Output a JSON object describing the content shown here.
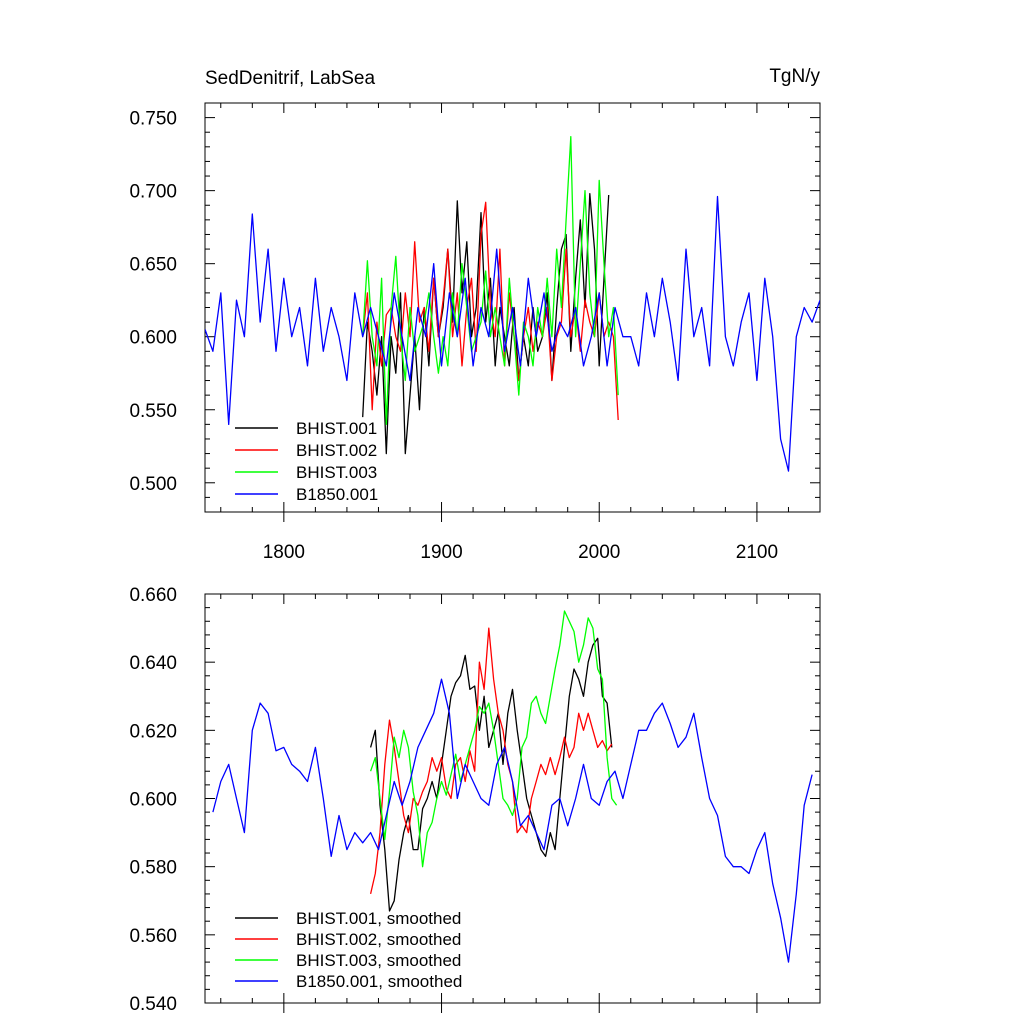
{
  "chart_data": [
    {
      "type": "line",
      "title": "SedDenitrif, LabSea",
      "units": "TgN/y",
      "xlabel": "",
      "ylabel": "",
      "xlim": [
        1750,
        2140
      ],
      "ylim": [
        0.48,
        0.76
      ],
      "x_ticks": [
        1800,
        1900,
        2000,
        2100
      ],
      "x_tick_labels": [
        "1800",
        "1900",
        "2000",
        "2100"
      ],
      "y_ticks": [
        0.5,
        0.55,
        0.6,
        0.65,
        0.7,
        0.75
      ],
      "y_tick_labels": [
        "0.500",
        "0.550",
        "0.600",
        "0.650",
        "0.700",
        "0.750"
      ],
      "grid": false,
      "legend_position": "bottom-left",
      "series": [
        {
          "name": "BHIST.001",
          "color": "#000000",
          "x": [
            1850,
            1853,
            1856,
            1859,
            1862,
            1865,
            1868,
            1871,
            1874,
            1877,
            1880,
            1883,
            1886,
            1889,
            1892,
            1895,
            1898,
            1901,
            1904,
            1907,
            1910,
            1913,
            1916,
            1919,
            1922,
            1925,
            1928,
            1931,
            1934,
            1937,
            1940,
            1943,
            1946,
            1949,
            1952,
            1955,
            1958,
            1961,
            1964,
            1967,
            1970,
            1973,
            1976,
            1979,
            1982,
            1985,
            1988,
            1991,
            1994,
            1997,
            2000,
            2003,
            2006
          ],
          "values": [
            0.545,
            0.61,
            0.59,
            0.56,
            0.6,
            0.52,
            0.6,
            0.575,
            0.63,
            0.52,
            0.56,
            0.6,
            0.55,
            0.62,
            0.58,
            0.64,
            0.6,
            0.62,
            0.66,
            0.61,
            0.693,
            0.63,
            0.665,
            0.6,
            0.62,
            0.685,
            0.61,
            0.64,
            0.58,
            0.62,
            0.6,
            0.58,
            0.62,
            0.57,
            0.6,
            0.58,
            0.62,
            0.59,
            0.6,
            0.63,
            0.57,
            0.62,
            0.66,
            0.67,
            0.59,
            0.64,
            0.68,
            0.62,
            0.698,
            0.66,
            0.58,
            0.64,
            0.697
          ]
        },
        {
          "name": "BHIST.002",
          "color": "#ff0000",
          "x": [
            1850,
            1853,
            1856,
            1859,
            1862,
            1865,
            1868,
            1871,
            1874,
            1877,
            1880,
            1883,
            1886,
            1889,
            1892,
            1895,
            1898,
            1901,
            1904,
            1907,
            1910,
            1913,
            1916,
            1919,
            1922,
            1925,
            1928,
            1931,
            1934,
            1937,
            1940,
            1943,
            1946,
            1949,
            1952,
            1955,
            1958,
            1961,
            1964,
            1967,
            1970,
            1973,
            1976,
            1979,
            1982,
            1985,
            1988,
            1991,
            1994,
            1997,
            2000,
            2003,
            2006,
            2009,
            2012
          ],
          "values": [
            0.6,
            0.63,
            0.55,
            0.61,
            0.58,
            0.615,
            0.62,
            0.6,
            0.59,
            0.63,
            0.6,
            0.665,
            0.61,
            0.62,
            0.59,
            0.64,
            0.6,
            0.625,
            0.66,
            0.6,
            0.63,
            0.58,
            0.62,
            0.64,
            0.59,
            0.67,
            0.692,
            0.62,
            0.6,
            0.66,
            0.58,
            0.63,
            0.6,
            0.57,
            0.6,
            0.62,
            0.59,
            0.61,
            0.6,
            0.62,
            0.57,
            0.6,
            0.61,
            0.66,
            0.6,
            0.62,
            0.59,
            0.625,
            0.61,
            0.6,
            0.63,
            0.6,
            0.61,
            0.6,
            0.543
          ]
        },
        {
          "name": "BHIST.003",
          "color": "#00ff00",
          "x": [
            1850,
            1853,
            1856,
            1859,
            1862,
            1865,
            1868,
            1871,
            1874,
            1877,
            1880,
            1883,
            1886,
            1889,
            1892,
            1895,
            1898,
            1901,
            1904,
            1907,
            1910,
            1913,
            1916,
            1919,
            1922,
            1925,
            1928,
            1931,
            1934,
            1937,
            1940,
            1943,
            1946,
            1949,
            1952,
            1955,
            1958,
            1961,
            1964,
            1967,
            1970,
            1973,
            1976,
            1979,
            1982,
            1985,
            1988,
            1991,
            1994,
            1997,
            2000,
            2003,
            2006,
            2009,
            2012
          ],
          "values": [
            0.6,
            0.652,
            0.6,
            0.58,
            0.64,
            0.54,
            0.62,
            0.655,
            0.6,
            0.57,
            0.62,
            0.59,
            0.6,
            0.61,
            0.63,
            0.6,
            0.575,
            0.6,
            0.58,
            0.63,
            0.6,
            0.65,
            0.62,
            0.59,
            0.6,
            0.61,
            0.645,
            0.6,
            0.62,
            0.6,
            0.58,
            0.64,
            0.6,
            0.56,
            0.61,
            0.6,
            0.58,
            0.62,
            0.6,
            0.64,
            0.6,
            0.66,
            0.62,
            0.68,
            0.737,
            0.6,
            0.65,
            0.7,
            0.63,
            0.6,
            0.707,
            0.65,
            0.6,
            0.62,
            0.56
          ]
        },
        {
          "name": "B1850.001",
          "color": "#0000ff",
          "x": [
            1750,
            1755,
            1760,
            1765,
            1770,
            1775,
            1780,
            1785,
            1790,
            1795,
            1800,
            1805,
            1810,
            1815,
            1820,
            1825,
            1830,
            1835,
            1840,
            1845,
            1850,
            1855,
            1860,
            1865,
            1870,
            1875,
            1880,
            1885,
            1890,
            1895,
            1900,
            1905,
            1910,
            1915,
            1920,
            1925,
            1930,
            1935,
            1940,
            1945,
            1950,
            1955,
            1960,
            1965,
            1970,
            1975,
            1980,
            1985,
            1990,
            1995,
            2000,
            2005,
            2010,
            2015,
            2020,
            2025,
            2030,
            2035,
            2040,
            2045,
            2050,
            2055,
            2060,
            2065,
            2070,
            2075,
            2080,
            2085,
            2090,
            2095,
            2100,
            2105,
            2110,
            2115,
            2120,
            2125,
            2130,
            2135,
            2140
          ],
          "values": [
            0.605,
            0.59,
            0.63,
            0.54,
            0.625,
            0.6,
            0.684,
            0.61,
            0.66,
            0.59,
            0.64,
            0.6,
            0.62,
            0.58,
            0.64,
            0.59,
            0.62,
            0.6,
            0.57,
            0.63,
            0.6,
            0.62,
            0.6,
            0.58,
            0.63,
            0.6,
            0.57,
            0.62,
            0.6,
            0.65,
            0.58,
            0.63,
            0.6,
            0.64,
            0.58,
            0.62,
            0.6,
            0.66,
            0.59,
            0.62,
            0.58,
            0.64,
            0.6,
            0.63,
            0.59,
            0.61,
            0.6,
            0.62,
            0.58,
            0.6,
            0.63,
            0.58,
            0.62,
            0.6,
            0.6,
            0.58,
            0.63,
            0.6,
            0.64,
            0.61,
            0.57,
            0.66,
            0.6,
            0.62,
            0.58,
            0.696,
            0.6,
            0.58,
            0.61,
            0.63,
            0.57,
            0.64,
            0.6,
            0.53,
            0.508,
            0.6,
            0.62,
            0.61,
            0.625
          ]
        }
      ]
    },
    {
      "type": "line",
      "title": "",
      "xlabel": "",
      "ylabel": "",
      "xlim": [
        1750,
        2140
      ],
      "ylim": [
        0.54,
        0.66
      ],
      "x_ticks": [
        1800,
        1900,
        2000,
        2100
      ],
      "x_tick_labels": [],
      "y_ticks": [
        0.54,
        0.56,
        0.58,
        0.6,
        0.62,
        0.64,
        0.66
      ],
      "y_tick_labels": [
        "0.540",
        "0.560",
        "0.580",
        "0.600",
        "0.620",
        "0.640",
        "0.660"
      ],
      "grid": false,
      "legend_position": "bottom-left",
      "series": [
        {
          "name": "BHIST.001, smoothed",
          "color": "#000000",
          "x": [
            1855,
            1858,
            1861,
            1864,
            1867,
            1870,
            1873,
            1876,
            1879,
            1882,
            1885,
            1888,
            1891,
            1894,
            1897,
            1900,
            1903,
            1906,
            1909,
            1912,
            1915,
            1918,
            1921,
            1924,
            1927,
            1930,
            1933,
            1936,
            1939,
            1942,
            1945,
            1948,
            1951,
            1954,
            1957,
            1960,
            1963,
            1966,
            1969,
            1972,
            1975,
            1978,
            1981,
            1984,
            1987,
            1990,
            1993,
            1996,
            1999,
            2002,
            2005,
            2008
          ],
          "values": [
            0.615,
            0.62,
            0.598,
            0.585,
            0.567,
            0.57,
            0.582,
            0.59,
            0.595,
            0.585,
            0.585,
            0.597,
            0.6,
            0.605,
            0.6,
            0.61,
            0.62,
            0.63,
            0.634,
            0.636,
            0.642,
            0.632,
            0.633,
            0.62,
            0.63,
            0.615,
            0.62,
            0.625,
            0.61,
            0.625,
            0.632,
            0.62,
            0.61,
            0.6,
            0.595,
            0.59,
            0.585,
            0.583,
            0.59,
            0.585,
            0.6,
            0.615,
            0.63,
            0.638,
            0.635,
            0.63,
            0.64,
            0.645,
            0.647,
            0.63,
            0.628,
            0.615
          ]
        },
        {
          "name": "BHIST.002, smoothed",
          "color": "#ff0000",
          "x": [
            1855,
            1858,
            1861,
            1864,
            1867,
            1870,
            1873,
            1876,
            1879,
            1882,
            1885,
            1888,
            1891,
            1894,
            1897,
            1900,
            1903,
            1906,
            1909,
            1912,
            1915,
            1918,
            1921,
            1924,
            1927,
            1930,
            1933,
            1936,
            1939,
            1942,
            1945,
            1948,
            1951,
            1954,
            1957,
            1960,
            1963,
            1966,
            1969,
            1972,
            1975,
            1978,
            1981,
            1984,
            1987,
            1990,
            1993,
            1996,
            1999,
            2002,
            2005,
            2008
          ],
          "values": [
            0.572,
            0.578,
            0.59,
            0.61,
            0.623,
            0.615,
            0.605,
            0.595,
            0.59,
            0.6,
            0.598,
            0.602,
            0.605,
            0.612,
            0.608,
            0.612,
            0.603,
            0.6,
            0.61,
            0.612,
            0.605,
            0.614,
            0.608,
            0.64,
            0.632,
            0.65,
            0.635,
            0.625,
            0.62,
            0.61,
            0.605,
            0.59,
            0.592,
            0.59,
            0.6,
            0.605,
            0.61,
            0.607,
            0.612,
            0.607,
            0.612,
            0.618,
            0.612,
            0.615,
            0.625,
            0.62,
            0.625,
            0.62,
            0.615,
            0.617,
            0.614,
            0.616
          ]
        },
        {
          "name": "BHIST.003, smoothed",
          "color": "#00ff00",
          "x": [
            1855,
            1858,
            1861,
            1864,
            1867,
            1870,
            1873,
            1876,
            1879,
            1882,
            1885,
            1888,
            1891,
            1894,
            1897,
            1900,
            1903,
            1906,
            1909,
            1912,
            1915,
            1918,
            1921,
            1924,
            1927,
            1930,
            1933,
            1936,
            1939,
            1942,
            1945,
            1948,
            1951,
            1954,
            1957,
            1960,
            1963,
            1966,
            1969,
            1972,
            1975,
            1978,
            1981,
            1984,
            1987,
            1990,
            1993,
            1996,
            1999,
            2002,
            2005,
            2008,
            2011
          ],
          "values": [
            0.608,
            0.612,
            0.6,
            0.588,
            0.602,
            0.618,
            0.612,
            0.62,
            0.615,
            0.602,
            0.595,
            0.58,
            0.59,
            0.593,
            0.6,
            0.605,
            0.601,
            0.607,
            0.613,
            0.605,
            0.61,
            0.615,
            0.62,
            0.627,
            0.625,
            0.628,
            0.62,
            0.61,
            0.6,
            0.598,
            0.595,
            0.6,
            0.615,
            0.618,
            0.628,
            0.63,
            0.625,
            0.622,
            0.63,
            0.638,
            0.645,
            0.655,
            0.652,
            0.649,
            0.64,
            0.645,
            0.653,
            0.65,
            0.638,
            0.635,
            0.612,
            0.6,
            0.598
          ]
        },
        {
          "name": "B1850.001, smoothed",
          "color": "#0000ff",
          "x": [
            1755,
            1760,
            1765,
            1770,
            1775,
            1780,
            1785,
            1790,
            1795,
            1800,
            1805,
            1810,
            1815,
            1820,
            1825,
            1830,
            1835,
            1840,
            1845,
            1850,
            1855,
            1860,
            1865,
            1870,
            1875,
            1880,
            1885,
            1890,
            1895,
            1900,
            1905,
            1910,
            1915,
            1920,
            1925,
            1930,
            1935,
            1940,
            1945,
            1950,
            1955,
            1960,
            1965,
            1970,
            1975,
            1980,
            1985,
            1990,
            1995,
            2000,
            2005,
            2010,
            2015,
            2020,
            2025,
            2030,
            2035,
            2040,
            2045,
            2050,
            2055,
            2060,
            2065,
            2070,
            2075,
            2080,
            2085,
            2090,
            2095,
            2100,
            2105,
            2110,
            2115,
            2120,
            2125,
            2130,
            2135
          ],
          "values": [
            0.596,
            0.605,
            0.61,
            0.6,
            0.59,
            0.62,
            0.628,
            0.625,
            0.614,
            0.615,
            0.61,
            0.608,
            0.605,
            0.615,
            0.6,
            0.583,
            0.595,
            0.585,
            0.59,
            0.587,
            0.59,
            0.585,
            0.595,
            0.605,
            0.598,
            0.605,
            0.615,
            0.62,
            0.625,
            0.635,
            0.625,
            0.6,
            0.61,
            0.605,
            0.6,
            0.598,
            0.61,
            0.615,
            0.605,
            0.592,
            0.595,
            0.59,
            0.585,
            0.598,
            0.6,
            0.592,
            0.6,
            0.61,
            0.6,
            0.598,
            0.605,
            0.608,
            0.6,
            0.61,
            0.62,
            0.62,
            0.625,
            0.628,
            0.622,
            0.615,
            0.618,
            0.625,
            0.612,
            0.6,
            0.595,
            0.583,
            0.58,
            0.58,
            0.578,
            0.585,
            0.59,
            0.575,
            0.565,
            0.552,
            0.572,
            0.598,
            0.607
          ]
        }
      ]
    }
  ]
}
